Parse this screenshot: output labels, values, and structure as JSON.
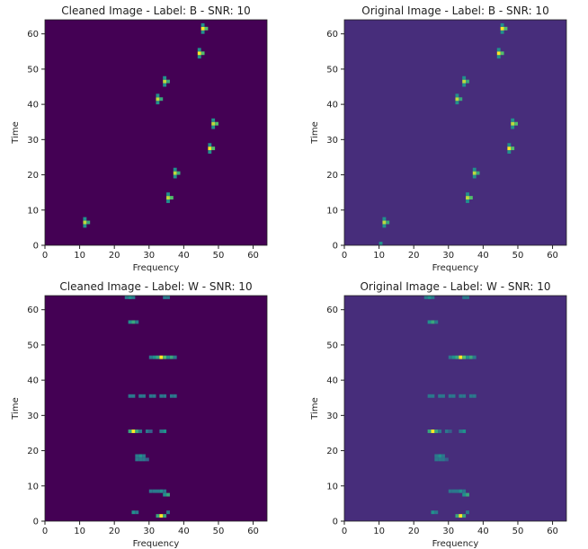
{
  "chart_data": [
    {
      "type": "heatmap",
      "title": "Cleaned Image - Label: B - SNR: 10",
      "xlabel": "Frequency",
      "ylabel": "Time",
      "xlim": [
        0,
        64
      ],
      "ylim": [
        0,
        64
      ],
      "xticks": [
        0,
        10,
        20,
        30,
        40,
        50,
        60
      ],
      "yticks": [
        0,
        10,
        20,
        30,
        40,
        50,
        60
      ],
      "background": "#440154",
      "colormap": [
        "#440154",
        "#3b528b",
        "#21918c",
        "#5ec962",
        "#fde725"
      ],
      "x": [
        45,
        45,
        46,
        45,
        44,
        44,
        45,
        44,
        34,
        34,
        35,
        34,
        32,
        32,
        33,
        32,
        48,
        48,
        49,
        48,
        47,
        47,
        48,
        47,
        37,
        37,
        38,
        37,
        35,
        35,
        36,
        35,
        11,
        11,
        12,
        11
      ],
      "y": [
        60,
        61,
        61,
        62,
        53,
        54,
        54,
        55,
        45,
        46,
        46,
        47,
        40,
        41,
        41,
        42,
        33,
        34,
        34,
        35,
        26,
        27,
        27,
        28,
        19,
        20,
        20,
        21,
        12,
        13,
        13,
        14,
        5,
        6,
        6,
        7
      ],
      "values": [
        0.5,
        1,
        0.7,
        0.5,
        0.5,
        1,
        0.7,
        0.5,
        0.5,
        0.9,
        0.6,
        0.5,
        0.5,
        0.9,
        0.6,
        0.5,
        0.5,
        0.9,
        0.7,
        0.5,
        0.5,
        1,
        0.7,
        0.5,
        0.5,
        0.9,
        0.6,
        0.5,
        0.5,
        0.9,
        0.7,
        0.5,
        0.5,
        0.9,
        0.6,
        0.5
      ]
    },
    {
      "type": "heatmap",
      "title": "Original Image - Label: B - SNR: 10",
      "xlabel": "Frequency",
      "ylabel": "Time",
      "xlim": [
        0,
        64
      ],
      "ylim": [
        0,
        64
      ],
      "xticks": [
        0,
        10,
        20,
        30,
        40,
        50,
        60
      ],
      "yticks": [
        0,
        10,
        20,
        30,
        40,
        50,
        60
      ],
      "background": "#472d7b",
      "colormap": [
        "#440154",
        "#3b528b",
        "#21918c",
        "#5ec962",
        "#fde725"
      ],
      "x": [
        45,
        45,
        46,
        45,
        44,
        44,
        45,
        44,
        34,
        34,
        35,
        34,
        32,
        32,
        33,
        32,
        48,
        48,
        49,
        48,
        47,
        47,
        48,
        47,
        37,
        37,
        38,
        37,
        35,
        35,
        36,
        35,
        11,
        11,
        12,
        11,
        10
      ],
      "y": [
        60,
        61,
        61,
        62,
        53,
        54,
        54,
        55,
        45,
        46,
        46,
        47,
        40,
        41,
        41,
        42,
        33,
        34,
        34,
        35,
        26,
        27,
        27,
        28,
        19,
        20,
        20,
        21,
        12,
        13,
        13,
        14,
        5,
        6,
        6,
        7,
        0
      ],
      "values": [
        0.5,
        1,
        0.7,
        0.5,
        0.5,
        1,
        0.7,
        0.5,
        0.5,
        0.9,
        0.6,
        0.5,
        0.5,
        0.9,
        0.6,
        0.5,
        0.5,
        0.9,
        0.7,
        0.5,
        0.5,
        1,
        0.7,
        0.5,
        0.5,
        0.9,
        0.6,
        0.5,
        0.5,
        0.9,
        0.7,
        0.5,
        0.5,
        0.9,
        0.6,
        0.5,
        0.5
      ]
    },
    {
      "type": "heatmap",
      "title": "Cleaned Image - Label: W - SNR: 10",
      "xlabel": "Frequency",
      "ylabel": "Time",
      "xlim": [
        0,
        64
      ],
      "ylim": [
        0,
        64
      ],
      "xticks": [
        0,
        10,
        20,
        30,
        40,
        50,
        60
      ],
      "yticks": [
        0,
        10,
        20,
        30,
        40,
        50,
        60
      ],
      "background": "#440154",
      "colormap": [
        "#440154",
        "#3b528b",
        "#21918c",
        "#5ec962",
        "#fde725"
      ],
      "x": [
        23,
        24,
        25,
        34,
        35,
        24,
        25,
        26,
        30,
        31,
        32,
        33,
        34,
        35,
        36,
        37,
        24,
        25,
        27,
        28,
        30,
        31,
        33,
        34,
        36,
        37,
        24,
        25,
        26,
        27,
        29,
        30,
        33,
        34,
        26,
        27,
        28,
        26,
        27,
        28,
        29,
        30,
        31,
        32,
        33,
        34,
        34,
        35,
        25,
        26,
        32,
        33,
        34,
        35
      ],
      "y": [
        63,
        63,
        63,
        63,
        63,
        56,
        56,
        56,
        46,
        46,
        46,
        46,
        46,
        46,
        46,
        46,
        35,
        35,
        35,
        35,
        35,
        35,
        35,
        35,
        35,
        35,
        25,
        25,
        25,
        25,
        25,
        25,
        25,
        25,
        18,
        18,
        18,
        17,
        17,
        17,
        17,
        8,
        8,
        8,
        8,
        8,
        7,
        7,
        2,
        2,
        1,
        1,
        1,
        2
      ],
      "values": [
        0.4,
        0.5,
        0.4,
        0.4,
        0.4,
        0.5,
        0.6,
        0.4,
        0.4,
        0.5,
        0.6,
        1,
        0.7,
        0.5,
        0.6,
        0.4,
        0.4,
        0.4,
        0.4,
        0.4,
        0.4,
        0.4,
        0.4,
        0.4,
        0.4,
        0.4,
        0.6,
        1,
        0.6,
        0.4,
        0.4,
        0.3,
        0.4,
        0.5,
        0.4,
        0.5,
        0.4,
        0.4,
        0.4,
        0.4,
        0.3,
        0.4,
        0.4,
        0.4,
        0.5,
        0.4,
        0.5,
        0.6,
        0.5,
        0.4,
        0.6,
        1,
        0.6,
        0.4
      ]
    },
    {
      "type": "heatmap",
      "title": "Original Image - Label: W - SNR: 10",
      "xlabel": "Frequency",
      "ylabel": "Time",
      "xlim": [
        0,
        64
      ],
      "ylim": [
        0,
        64
      ],
      "xticks": [
        0,
        10,
        20,
        30,
        40,
        50,
        60
      ],
      "yticks": [
        0,
        10,
        20,
        30,
        40,
        50,
        60
      ],
      "background": "#472d7b",
      "colormap": [
        "#440154",
        "#3b528b",
        "#21918c",
        "#5ec962",
        "#fde725"
      ],
      "x": [
        23,
        24,
        25,
        34,
        35,
        24,
        25,
        26,
        30,
        31,
        32,
        33,
        34,
        35,
        36,
        37,
        24,
        25,
        27,
        28,
        30,
        31,
        33,
        34,
        36,
        37,
        24,
        25,
        26,
        27,
        29,
        30,
        33,
        34,
        26,
        27,
        28,
        26,
        27,
        28,
        29,
        30,
        31,
        32,
        33,
        34,
        34,
        35,
        25,
        26,
        32,
        33,
        34,
        35
      ],
      "y": [
        63,
        63,
        63,
        63,
        63,
        56,
        56,
        56,
        46,
        46,
        46,
        46,
        46,
        46,
        46,
        46,
        35,
        35,
        35,
        35,
        35,
        35,
        35,
        35,
        35,
        35,
        25,
        25,
        25,
        25,
        25,
        25,
        25,
        25,
        18,
        18,
        18,
        17,
        17,
        17,
        17,
        8,
        8,
        8,
        8,
        8,
        7,
        7,
        2,
        2,
        1,
        1,
        1,
        2
      ],
      "values": [
        0.4,
        0.5,
        0.4,
        0.4,
        0.4,
        0.5,
        0.6,
        0.4,
        0.4,
        0.5,
        0.6,
        1,
        0.7,
        0.5,
        0.6,
        0.4,
        0.4,
        0.4,
        0.4,
        0.4,
        0.4,
        0.4,
        0.4,
        0.4,
        0.4,
        0.4,
        0.6,
        1,
        0.6,
        0.4,
        0.4,
        0.3,
        0.4,
        0.5,
        0.4,
        0.5,
        0.4,
        0.4,
        0.4,
        0.4,
        0.3,
        0.4,
        0.4,
        0.4,
        0.5,
        0.4,
        0.5,
        0.6,
        0.5,
        0.4,
        0.6,
        1,
        0.6,
        0.4
      ]
    }
  ]
}
